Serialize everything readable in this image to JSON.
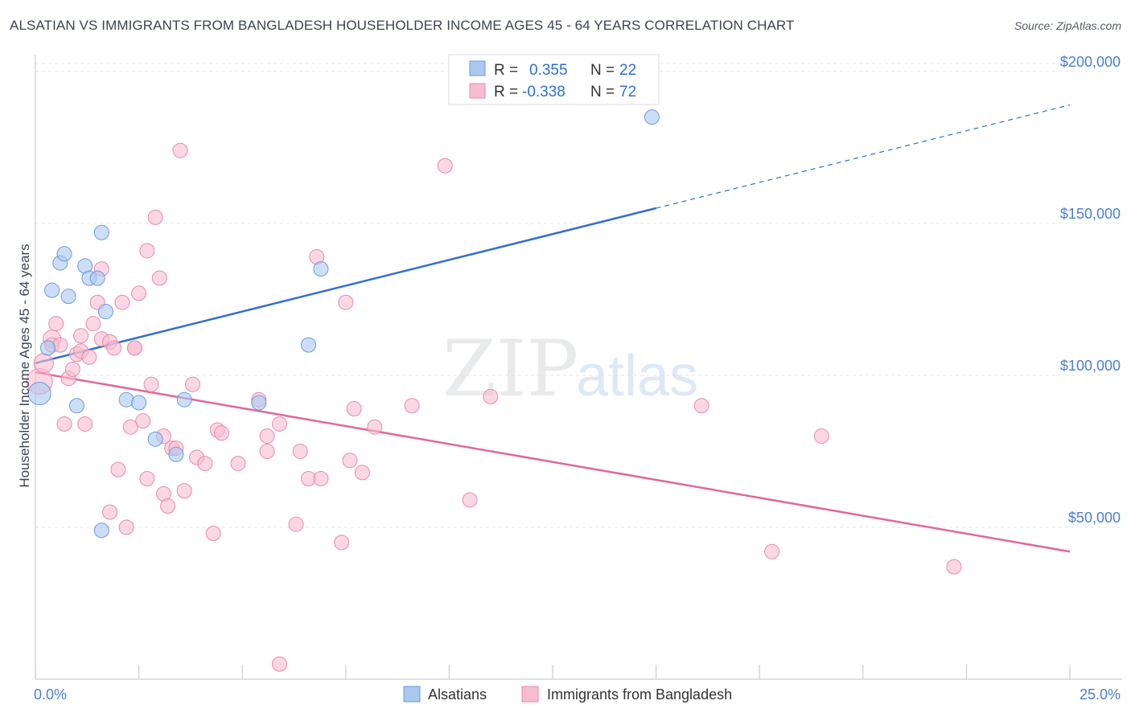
{
  "header": {
    "title": "ALSATIAN VS IMMIGRANTS FROM BANGLADESH HOUSEHOLDER INCOME AGES 45 - 64 YEARS CORRELATION CHART",
    "source": "Source: ZipAtlas.com"
  },
  "watermark": {
    "zip": "ZIP",
    "atlas": "atlas"
  },
  "legend": {
    "rows": [
      {
        "r_label": "R =",
        "r_value": "0.355",
        "n_label": "N =",
        "n_value": "22"
      },
      {
        "r_label": "R =",
        "r_value": "-0.338",
        "n_label": "N =",
        "n_value": "72"
      }
    ]
  },
  "bottom_legend": {
    "items": [
      "Alsatians",
      "Immigrants from Bangladesh"
    ]
  },
  "colors": {
    "blue_fill": "#aac8f0",
    "blue_stroke": "#6b9be0",
    "blue_line": "#2f6fd0",
    "pink_fill": "#f7bcd0",
    "pink_stroke": "#e88aaa",
    "pink_line": "#e0689a",
    "grid": "#e3e6ec",
    "tick_text": "#4a7fd0"
  },
  "chart_data": {
    "type": "scatter",
    "title": "ALSATIAN VS IMMIGRANTS FROM BANGLADESH HOUSEHOLDER INCOME AGES 45 - 64 YEARS CORRELATION CHART",
    "xlabel": "",
    "ylabel": "Householder Income Ages 45 - 64 years",
    "xlim": [
      0,
      25
    ],
    "ylim": [
      0,
      205000
    ],
    "x_tick_labels": [
      "0.0%",
      "25.0%"
    ],
    "y_ticks": [
      50000,
      100000,
      150000,
      200000
    ],
    "y_tick_labels": [
      "$50,000",
      "$100,000",
      "$150,000",
      "$200,000"
    ],
    "grid": true,
    "series": [
      {
        "name": "Alsatians",
        "R": 0.355,
        "N": 22,
        "trend": {
          "x_start": 0,
          "y_start": 104000,
          "x_solid_end": 15,
          "y_solid_end": 155000,
          "x_end": 25,
          "y_end": 189000
        },
        "points": [
          [
            0.1,
            94000,
            14
          ],
          [
            0.3,
            109000,
            9
          ],
          [
            0.4,
            128000,
            9
          ],
          [
            0.6,
            137000,
            9
          ],
          [
            0.7,
            140000,
            9
          ],
          [
            0.8,
            126000,
            9
          ],
          [
            1.0,
            90000,
            9
          ],
          [
            1.2,
            136000,
            9
          ],
          [
            1.3,
            132000,
            9
          ],
          [
            1.5,
            132000,
            9
          ],
          [
            1.6,
            147000,
            9
          ],
          [
            1.7,
            121000,
            9
          ],
          [
            2.2,
            92000,
            9
          ],
          [
            2.5,
            91000,
            9
          ],
          [
            2.9,
            79000,
            9
          ],
          [
            3.4,
            74000,
            9
          ],
          [
            3.6,
            92000,
            9
          ],
          [
            5.4,
            91000,
            9
          ],
          [
            6.6,
            110000,
            9
          ],
          [
            6.9,
            135000,
            9
          ],
          [
            1.6,
            49000,
            9
          ],
          [
            14.9,
            185000,
            9
          ]
        ]
      },
      {
        "name": "Immigrants from Bangladesh",
        "R": -0.338,
        "N": 72,
        "trend": {
          "x_start": 0,
          "y_start": 101000,
          "x_end": 25,
          "y_end": 42000
        },
        "points": [
          [
            0.1,
            98000,
            16
          ],
          [
            0.2,
            104000,
            12
          ],
          [
            0.4,
            112000,
            11
          ],
          [
            0.4,
            110000,
            9
          ],
          [
            0.5,
            117000,
            9
          ],
          [
            0.6,
            110000,
            9
          ],
          [
            0.7,
            84000,
            9
          ],
          [
            0.8,
            99000,
            9
          ],
          [
            0.9,
            102000,
            9
          ],
          [
            1.0,
            107000,
            9
          ],
          [
            1.1,
            108000,
            9
          ],
          [
            1.2,
            84000,
            9
          ],
          [
            1.1,
            113000,
            9
          ],
          [
            1.4,
            117000,
            9
          ],
          [
            1.5,
            124000,
            9
          ],
          [
            1.6,
            112000,
            9
          ],
          [
            1.6,
            135000,
            9
          ],
          [
            1.8,
            111000,
            9
          ],
          [
            1.9,
            109000,
            9
          ],
          [
            2.0,
            69000,
            9
          ],
          [
            2.1,
            124000,
            9
          ],
          [
            2.2,
            50000,
            9
          ],
          [
            2.3,
            83000,
            9
          ],
          [
            2.4,
            109000,
            9
          ],
          [
            2.5,
            127000,
            9
          ],
          [
            2.6,
            85000,
            9
          ],
          [
            2.7,
            141000,
            9
          ],
          [
            2.7,
            66000,
            9
          ],
          [
            2.8,
            97000,
            9
          ],
          [
            2.9,
            152000,
            9
          ],
          [
            3.0,
            132000,
            9
          ],
          [
            3.1,
            80000,
            9
          ],
          [
            3.1,
            61000,
            9
          ],
          [
            3.2,
            57000,
            9
          ],
          [
            3.3,
            76000,
            9
          ],
          [
            3.4,
            76000,
            9
          ],
          [
            3.5,
            174000,
            9
          ],
          [
            3.6,
            62000,
            9
          ],
          [
            3.8,
            97000,
            9
          ],
          [
            3.9,
            73000,
            9
          ],
          [
            4.1,
            71000,
            9
          ],
          [
            4.3,
            48000,
            9
          ],
          [
            4.4,
            82000,
            9
          ],
          [
            4.5,
            81000,
            9
          ],
          [
            4.9,
            71000,
            9
          ],
          [
            5.4,
            92000,
            9
          ],
          [
            5.6,
            80000,
            9
          ],
          [
            5.6,
            75000,
            9
          ],
          [
            5.9,
            84000,
            9
          ],
          [
            6.3,
            51000,
            9
          ],
          [
            6.4,
            75000,
            9
          ],
          [
            6.6,
            66000,
            9
          ],
          [
            6.8,
            139000,
            9
          ],
          [
            6.9,
            66000,
            9
          ],
          [
            7.5,
            124000,
            9
          ],
          [
            7.6,
            72000,
            9
          ],
          [
            7.7,
            89000,
            9
          ],
          [
            7.9,
            68000,
            9
          ],
          [
            8.2,
            83000,
            9
          ],
          [
            9.1,
            90000,
            9
          ],
          [
            9.9,
            169000,
            9
          ],
          [
            10.5,
            59000,
            9
          ],
          [
            11.0,
            93000,
            9
          ],
          [
            16.1,
            90000,
            9
          ],
          [
            17.8,
            42000,
            9
          ],
          [
            19.0,
            80000,
            9
          ],
          [
            22.2,
            37000,
            9
          ],
          [
            7.4,
            45000,
            9
          ],
          [
            5.9,
            5000,
            9
          ],
          [
            1.8,
            55000,
            9
          ],
          [
            2.4,
            109000,
            9
          ],
          [
            1.3,
            106000,
            9
          ]
        ]
      }
    ]
  }
}
